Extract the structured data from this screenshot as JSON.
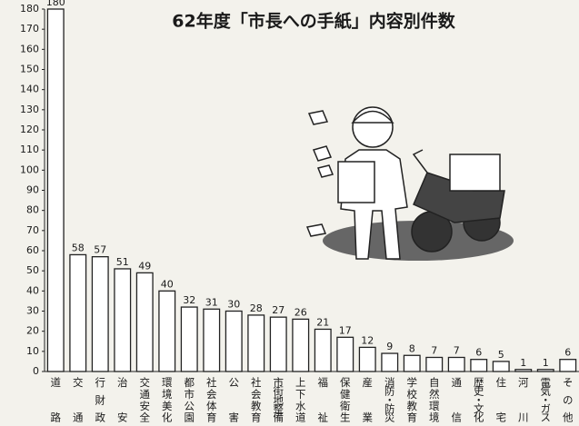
{
  "chart_data": {
    "type": "bar",
    "title": "62年度「市長への手紙」内容別件数",
    "categories": [
      "道路",
      "交通",
      "行財政",
      "治安",
      "交通安全",
      "環境美化",
      "都市公園",
      "社会体育",
      "公害",
      "社会教育",
      "市街地整備",
      "上下水道",
      "福祉",
      "保健衛生",
      "産業",
      "消防・防災",
      "学校教育",
      "自然環境",
      "通信",
      "歴史・文化",
      "住宅",
      "河川",
      "電気・ガス",
      "その他"
    ],
    "values": [
      180,
      58,
      57,
      51,
      49,
      40,
      32,
      31,
      30,
      28,
      27,
      26,
      21,
      17,
      12,
      9,
      8,
      7,
      7,
      6,
      5,
      1,
      1,
      6
    ],
    "color": "#ffffff",
    "ylim": [
      0,
      180
    ],
    "yticks": [
      0,
      10,
      20,
      30,
      40,
      50,
      60,
      70,
      80,
      90,
      100,
      110,
      120,
      130,
      140,
      150,
      160,
      170,
      180
    ]
  }
}
